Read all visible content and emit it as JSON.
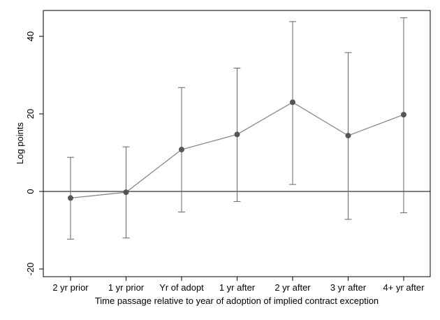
{
  "chart_data": {
    "type": "line",
    "title": "",
    "xlabel": "Time passage relative to year of adoption of implied contract exception",
    "ylabel": "Log points",
    "ylim": [
      -20,
      45
    ],
    "yticks": [
      -20,
      0,
      20,
      40
    ],
    "grid": false,
    "reference_line_y": 0,
    "categories": [
      "2 yr prior",
      "1 yr prior",
      "Yr of adopt",
      "1 yr after",
      "2 yr after",
      "3 yr after",
      "4+ yr after"
    ],
    "series": [
      {
        "values": [
          -1.7,
          -0.2,
          10.8,
          14.7,
          23.0,
          14.4,
          19.8
        ],
        "ci_low": [
          -12.3,
          -12.0,
          -5.3,
          -2.6,
          1.8,
          -7.2,
          -5.5
        ],
        "ci_high": [
          8.8,
          11.5,
          26.8,
          31.8,
          43.8,
          35.8,
          44.8
        ]
      }
    ],
    "colors": {
      "line": "#808080",
      "marker": "#555555",
      "errorbar": "#666666",
      "axis": "#000000",
      "refline": "#000000"
    }
  }
}
